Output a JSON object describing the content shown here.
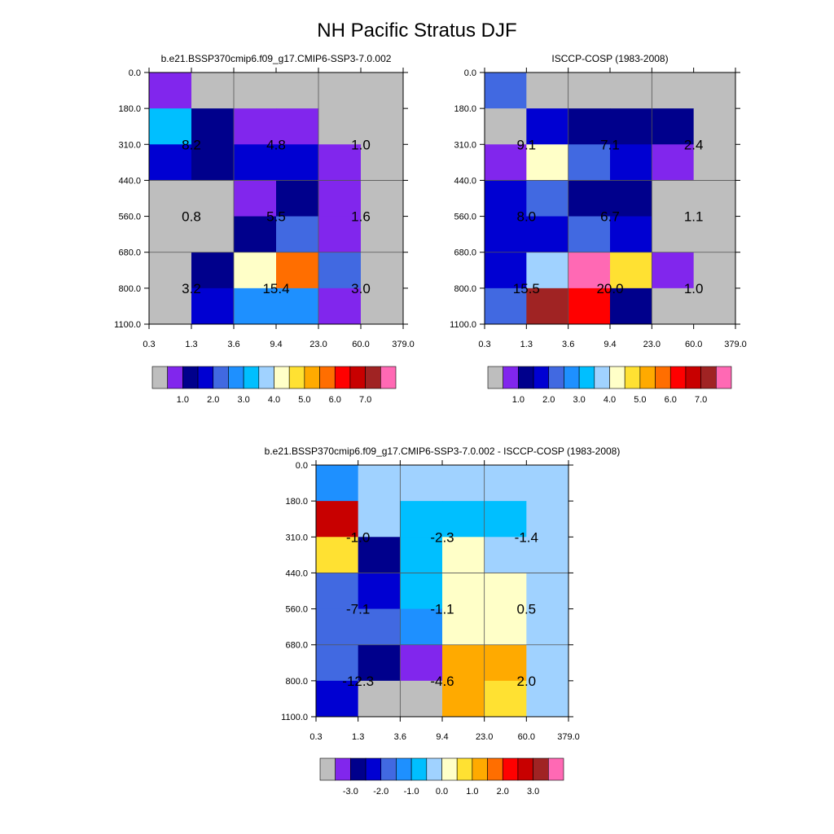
{
  "figure_title": "NH Pacific Stratus DJF",
  "palettes": {
    "abs": [
      "#bebebe",
      "#8126ed",
      "#00008c",
      "#0000d2",
      "#4169e1",
      "#1e90ff",
      "#00bfff",
      "#a0d2ff",
      "#ffffc8",
      "#ffe132",
      "#ffaa00",
      "#ff6e00",
      "#ff0000",
      "#c80000",
      "#a02323",
      "#ff69b4"
    ],
    "diff": [
      "#bebebe",
      "#8126ed",
      "#00008c",
      "#0000d2",
      "#4169e1",
      "#1e90ff",
      "#00bfff",
      "#a0d2ff",
      "#ffffc8",
      "#ffe132",
      "#ffaa00",
      "#ff6e00",
      "#ff0000",
      "#c80000",
      "#a02323",
      "#ff69b4"
    ]
  },
  "chart_data": [
    {
      "type": "heatmap",
      "title": "b.e21.BSSP370cmip6.f09_g17.CMIP6-SSP3-7.0.002",
      "x_tick_labels": [
        "0.3",
        "1.3",
        "3.6",
        "9.4",
        "23.0",
        "60.0",
        "379.0"
      ],
      "y_tick_labels": [
        "0.0",
        "180.0",
        "310.0",
        "440.0",
        "560.0",
        "680.0",
        "800.0",
        "1100.0"
      ],
      "palette": "abs",
      "cell_color_index": [
        [
          1,
          0,
          0,
          0,
          0,
          0
        ],
        [
          6,
          2,
          1,
          1,
          0,
          0
        ],
        [
          3,
          2,
          3,
          3,
          1,
          0
        ],
        [
          0,
          0,
          1,
          2,
          1,
          0
        ],
        [
          0,
          0,
          2,
          4,
          1,
          0
        ],
        [
          0,
          2,
          8,
          11,
          4,
          0
        ],
        [
          0,
          3,
          5,
          5,
          1,
          0
        ]
      ],
      "block_values": [
        [
          "8.2",
          "4.8",
          "1.0"
        ],
        [
          "0.8",
          "5.5",
          "1.6"
        ],
        [
          "3.2",
          "15.4",
          "3.0"
        ]
      ],
      "colorbar_labels": [
        "1.0",
        "2.0",
        "3.0",
        "4.0",
        "5.0",
        "6.0",
        "7.0"
      ]
    },
    {
      "type": "heatmap",
      "title": "ISCCP-COSP (1983-2008)",
      "x_tick_labels": [
        "0.3",
        "1.3",
        "3.6",
        "9.4",
        "23.0",
        "60.0",
        "379.0"
      ],
      "y_tick_labels": [
        "0.0",
        "180.0",
        "310.0",
        "440.0",
        "560.0",
        "680.0",
        "800.0",
        "1100.0"
      ],
      "palette": "abs",
      "cell_color_index": [
        [
          4,
          0,
          0,
          0,
          0,
          0
        ],
        [
          0,
          3,
          2,
          2,
          2,
          0
        ],
        [
          1,
          8,
          4,
          3,
          1,
          0
        ],
        [
          3,
          4,
          2,
          2,
          0,
          0
        ],
        [
          3,
          3,
          4,
          3,
          0,
          0
        ],
        [
          3,
          7,
          15,
          9,
          1,
          0
        ],
        [
          4,
          14,
          12,
          2,
          0,
          0
        ]
      ],
      "block_values": [
        [
          "9.1",
          "7.1",
          "2.4"
        ],
        [
          "8.0",
          "6.7",
          "1.1"
        ],
        [
          "15.5",
          "20.0",
          "1.0"
        ]
      ],
      "colorbar_labels": [
        "1.0",
        "2.0",
        "3.0",
        "4.0",
        "5.0",
        "6.0",
        "7.0"
      ]
    },
    {
      "type": "heatmap",
      "title": "b.e21.BSSP370cmip6.f09_g17.CMIP6-SSP3-7.0.002 - ISCCP-COSP (1983-2008)",
      "x_tick_labels": [
        "0.3",
        "1.3",
        "3.6",
        "9.4",
        "23.0",
        "60.0",
        "379.0"
      ],
      "y_tick_labels": [
        "0.0",
        "180.0",
        "310.0",
        "440.0",
        "560.0",
        "680.0",
        "800.0",
        "1100.0"
      ],
      "palette": "diff",
      "cell_color_index": [
        [
          5,
          7,
          7,
          7,
          7,
          7
        ],
        [
          13,
          7,
          6,
          6,
          6,
          7
        ],
        [
          9,
          2,
          6,
          8,
          7,
          7
        ],
        [
          4,
          3,
          6,
          8,
          8,
          7
        ],
        [
          4,
          4,
          5,
          8,
          8,
          7
        ],
        [
          4,
          2,
          1,
          10,
          10,
          7
        ],
        [
          3,
          0,
          0,
          10,
          9,
          7
        ]
      ],
      "block_values": [
        [
          "-1.0",
          "-2.3",
          "-1.4"
        ],
        [
          "-7.1",
          "-1.1",
          "0.5"
        ],
        [
          "-12.3",
          "-4.6",
          "2.0"
        ]
      ],
      "colorbar_labels": [
        "-3.0",
        "-2.0",
        "-1.0",
        "0.0",
        "1.0",
        "2.0",
        "3.0"
      ]
    }
  ]
}
